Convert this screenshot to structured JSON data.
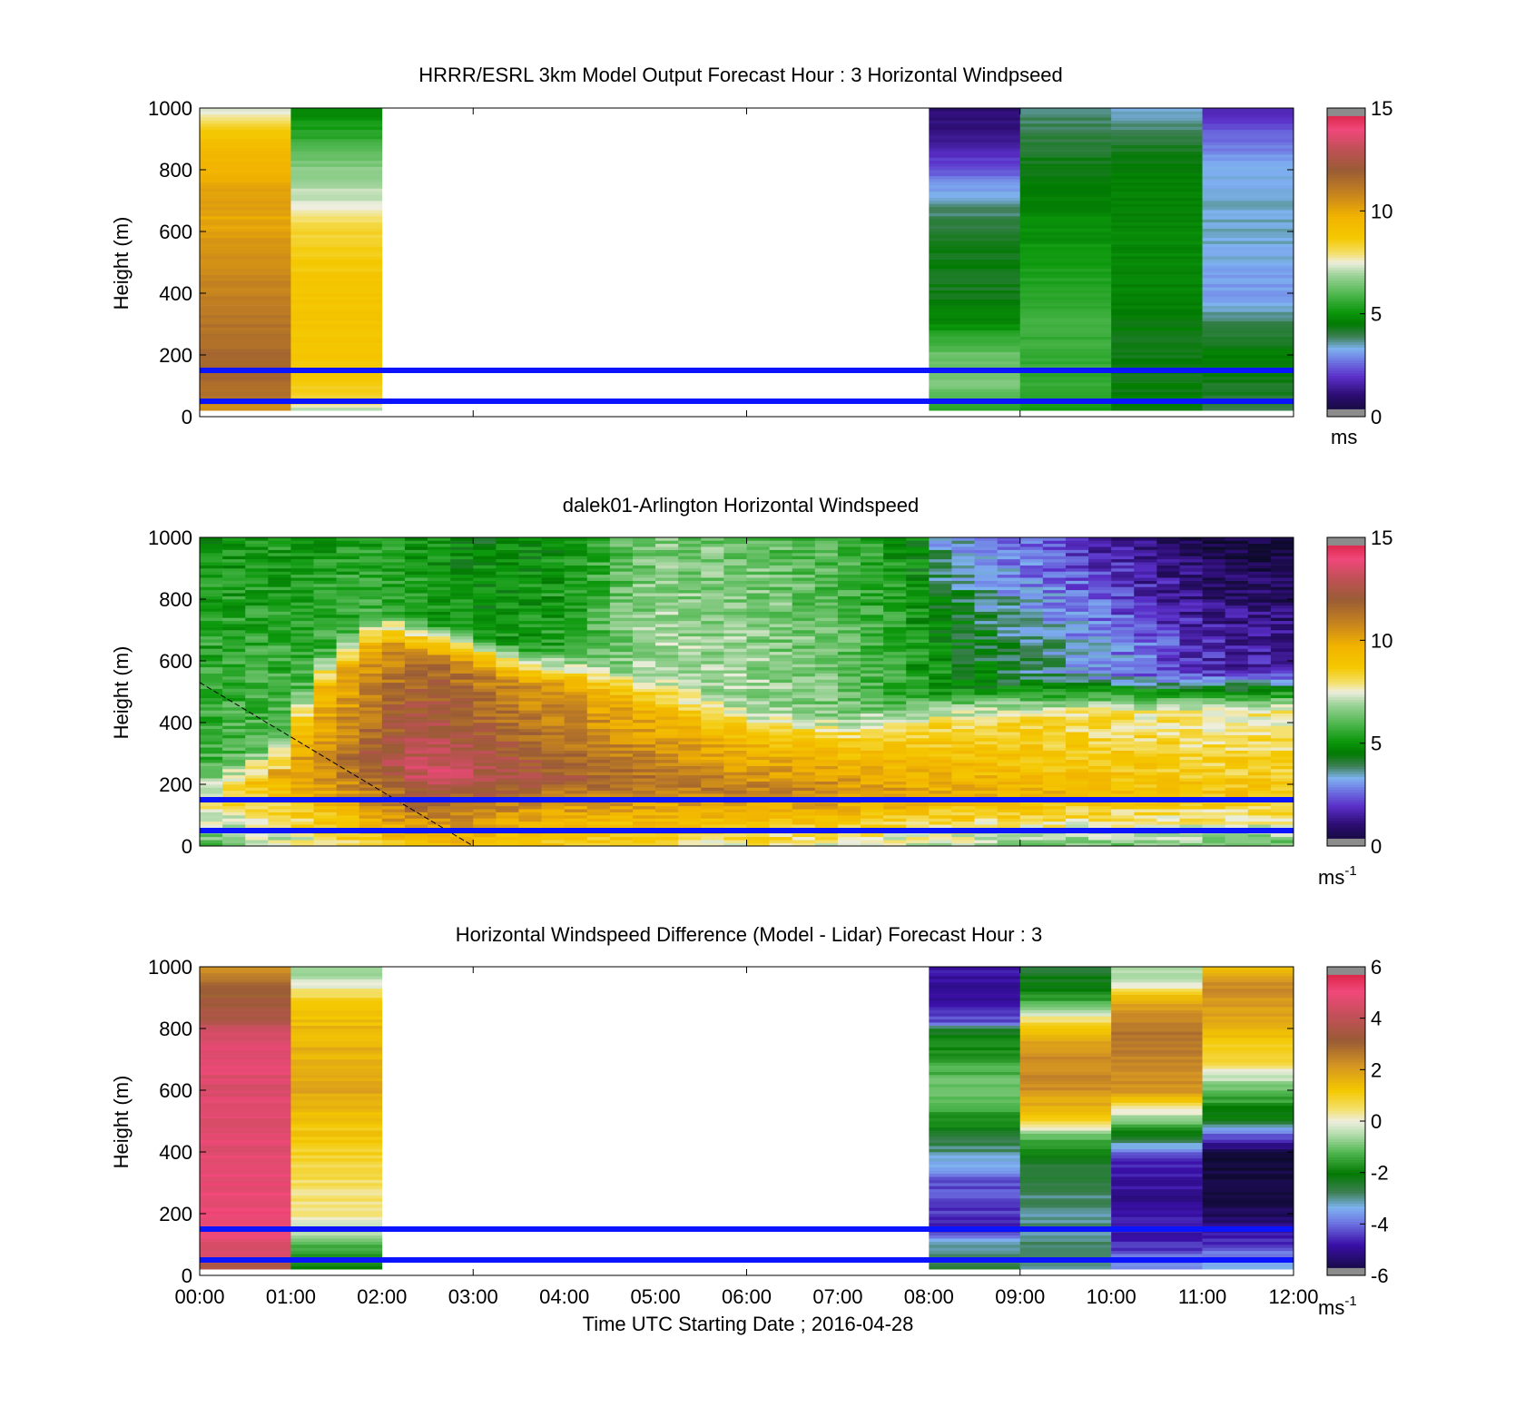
{
  "figure": {
    "xlabel": "Time UTC  Starting Date ; 2016-04-28",
    "x_ticks": [
      "00:00",
      "01:00",
      "02:00",
      "03:00",
      "04:00",
      "05:00",
      "06:00",
      "07:00",
      "08:00",
      "09:00",
      "10:00",
      "11:00",
      "12:00"
    ],
    "reference_lines_m": [
      50,
      150
    ],
    "reference_line_color": "#0a14ff"
  },
  "chart_data": [
    {
      "id": "model",
      "type": "heatmap",
      "title": "HRRR/ESRL 3km Model Output   Forecast Hour : 3 Horizontal Windpseed",
      "ylabel": "Height (m)",
      "y_ticks": [
        "0",
        "200",
        "400",
        "600",
        "800",
        "1000"
      ],
      "ylim": [
        0,
        1000
      ],
      "xlim_hours": [
        0,
        12
      ],
      "colorbar": {
        "ticks": [
          "0",
          "5",
          "10",
          "15"
        ],
        "range": [
          0,
          15
        ],
        "unit": "ms",
        "unit_superscript": "",
        "palette": "wind"
      },
      "grid": false,
      "columns": [
        {
          "start": 0,
          "end": 1,
          "profile": [
            [
              0,
              10
            ],
            [
              60,
              11.2
            ],
            [
              150,
              11.8
            ],
            [
              300,
              11.3
            ],
            [
              500,
              10.6
            ],
            [
              650,
              10.0
            ],
            [
              700,
              10.3
            ],
            [
              800,
              9.7
            ],
            [
              880,
              9.3
            ],
            [
              1000,
              7.4
            ]
          ]
        },
        {
          "start": 1,
          "end": 2,
          "profile": [
            [
              0,
              5.8
            ],
            [
              50,
              8.4
            ],
            [
              100,
              8.6
            ],
            [
              300,
              8.9
            ],
            [
              500,
              8.7
            ],
            [
              620,
              8.2
            ],
            [
              700,
              7.3
            ],
            [
              800,
              6.7
            ],
            [
              900,
              5.6
            ],
            [
              1000,
              4.7
            ]
          ]
        },
        {
          "start": 8,
          "end": 9,
          "profile": [
            [
              0,
              4.9
            ],
            [
              100,
              6.5
            ],
            [
              200,
              6.3
            ],
            [
              300,
              4.9
            ],
            [
              400,
              4.3
            ],
            [
              500,
              4.4
            ],
            [
              600,
              4.1
            ],
            [
              700,
              3.6
            ],
            [
              800,
              2.4
            ],
            [
              900,
              1.3
            ],
            [
              1000,
              1.0
            ]
          ]
        },
        {
          "start": 9,
          "end": 10,
          "profile": [
            [
              0,
              5.2
            ],
            [
              100,
              5.6
            ],
            [
              300,
              5.7
            ],
            [
              500,
              5.2
            ],
            [
              650,
              4.8
            ],
            [
              750,
              4.5
            ],
            [
              850,
              4.3
            ],
            [
              950,
              3.9
            ],
            [
              1000,
              3.6
            ]
          ]
        },
        {
          "start": 10,
          "end": 11,
          "profile": [
            [
              0,
              4.6
            ],
            [
              200,
              4.3
            ],
            [
              400,
              4.7
            ],
            [
              600,
              4.8
            ],
            [
              800,
              4.6
            ],
            [
              900,
              4.1
            ],
            [
              1000,
              3.4
            ]
          ]
        },
        {
          "start": 11,
          "end": 12,
          "profile": [
            [
              0,
              3.8
            ],
            [
              100,
              4.3
            ],
            [
              200,
              4.6
            ],
            [
              300,
              4.0
            ],
            [
              400,
              3.0
            ],
            [
              600,
              3.5
            ],
            [
              800,
              3.3
            ],
            [
              900,
              2.6
            ],
            [
              1000,
              1.8
            ]
          ]
        }
      ]
    },
    {
      "id": "lidar",
      "type": "heatmap",
      "title": "dalek01-Arlington  Horizontal Windspeed",
      "ylabel": "Height (m)",
      "y_ticks": [
        "0",
        "200",
        "400",
        "600",
        "800",
        "1000"
      ],
      "ylim": [
        0,
        1000
      ],
      "xlim_hours": [
        0,
        12
      ],
      "colorbar": {
        "ticks": [
          "0",
          "5",
          "10",
          "15"
        ],
        "range": [
          0,
          15
        ],
        "unit": "ms",
        "unit_superscript": "-1",
        "palette": "wind"
      },
      "grid": false,
      "time_step_hours": 0.25,
      "data_end_hour": 11.85,
      "low_level_jet": [
        [
          0,
          8.7
        ],
        [
          1,
          10.2
        ],
        [
          1.5,
          11.2
        ],
        [
          2.5,
          13.5
        ],
        [
          3.5,
          12.4
        ],
        [
          4.5,
          11.6
        ],
        [
          6,
          11.0
        ],
        [
          7,
          10.7
        ],
        [
          8,
          9.9
        ],
        [
          9,
          9.6
        ],
        [
          10,
          9.3
        ],
        [
          11,
          9.0
        ],
        [
          12,
          8.9
        ]
      ],
      "jet_peak_height_m": [
        [
          0,
          250
        ],
        [
          2,
          260
        ],
        [
          3,
          220
        ],
        [
          4,
          230
        ],
        [
          6,
          180
        ],
        [
          8,
          170
        ],
        [
          10,
          170
        ],
        [
          12,
          160
        ]
      ],
      "boundary_layer_top_m": [
        [
          0,
          150
        ],
        [
          0.9,
          250
        ],
        [
          1.3,
          500
        ],
        [
          2,
          650
        ],
        [
          2.5,
          610
        ],
        [
          3.5,
          530
        ],
        [
          4.2,
          500
        ],
        [
          5,
          430
        ],
        [
          6,
          330
        ],
        [
          7,
          310
        ],
        [
          8,
          380
        ],
        [
          9,
          420
        ],
        [
          10,
          430
        ],
        [
          11,
          440
        ],
        [
          12,
          450
        ]
      ],
      "upper_speed": [
        [
          0,
          5.0
        ],
        [
          2,
          5.4
        ],
        [
          3,
          4.6
        ],
        [
          4,
          5.0
        ],
        [
          5,
          6.5
        ],
        [
          6,
          6.3
        ],
        [
          7,
          5.8
        ],
        [
          8,
          4.6
        ],
        [
          9,
          3.4
        ],
        [
          10,
          2.5
        ],
        [
          11,
          1.4
        ],
        [
          12,
          0.9
        ]
      ],
      "dashed_line": {
        "from": [
          0,
          530
        ],
        "to": [
          3,
          0
        ]
      }
    },
    {
      "id": "difference",
      "type": "heatmap",
      "title": "Horizontal Windspeed Difference (Model - Lidar) Forecast Hour : 3",
      "ylabel": "Height (m)",
      "y_ticks": [
        "0",
        "200",
        "400",
        "600",
        "800",
        "1000"
      ],
      "ylim": [
        0,
        1000
      ],
      "xlim_hours": [
        0,
        12
      ],
      "colorbar": {
        "ticks": [
          "-6",
          "-4",
          "-2",
          "0",
          "2",
          "4",
          "6"
        ],
        "range": [
          -6,
          6
        ],
        "unit": "ms",
        "unit_superscript": "-1",
        "palette": "diff"
      },
      "grid": false,
      "columns": [
        {
          "start": 0,
          "end": 1,
          "profile": [
            [
              0,
              2.8
            ],
            [
              50,
              4.2
            ],
            [
              150,
              5.0
            ],
            [
              300,
              4.9
            ],
            [
              500,
              4.7
            ],
            [
              600,
              4.6
            ],
            [
              700,
              4.8
            ],
            [
              800,
              4.5
            ],
            [
              820,
              3.5
            ],
            [
              900,
              3.2
            ],
            [
              1000,
              2.4
            ]
          ]
        },
        {
          "start": 1,
          "end": 2,
          "profile": [
            [
              0,
              -2.2
            ],
            [
              100,
              -1.2
            ],
            [
              200,
              0.3
            ],
            [
              300,
              0.6
            ],
            [
              400,
              0.9
            ],
            [
              600,
              1.8
            ],
            [
              800,
              1.5
            ],
            [
              900,
              0.9
            ],
            [
              950,
              -0.3
            ],
            [
              1000,
              -0.8
            ]
          ]
        },
        {
          "start": 8,
          "end": 9,
          "profile": [
            [
              0,
              -2.6
            ],
            [
              100,
              -3.1
            ],
            [
              150,
              -4.6
            ],
            [
              300,
              -4.2
            ],
            [
              400,
              -3.0
            ],
            [
              500,
              -1.8
            ],
            [
              600,
              -1.0
            ],
            [
              700,
              -1.5
            ],
            [
              800,
              -2.3
            ],
            [
              820,
              -4.2
            ],
            [
              900,
              -5.0
            ],
            [
              1000,
              -4.8
            ]
          ]
        },
        {
          "start": 9,
          "end": 10,
          "profile": [
            [
              0,
              -2.8
            ],
            [
              200,
              -3.0
            ],
            [
              350,
              -2.6
            ],
            [
              450,
              -1.2
            ],
            [
              500,
              1.0
            ],
            [
              600,
              2.2
            ],
            [
              700,
              2.4
            ],
            [
              800,
              1.3
            ],
            [
              900,
              -1.6
            ],
            [
              1000,
              -2.7
            ]
          ]
        },
        {
          "start": 10,
          "end": 11,
          "profile": [
            [
              0,
              -3.2
            ],
            [
              100,
              -4.6
            ],
            [
              250,
              -5.0
            ],
            [
              380,
              -4.6
            ],
            [
              440,
              -2.7
            ],
            [
              500,
              -1.0
            ],
            [
              600,
              2.2
            ],
            [
              800,
              2.8
            ],
            [
              900,
              1.6
            ],
            [
              950,
              -0.3
            ],
            [
              1000,
              -0.5
            ]
          ]
        },
        {
          "start": 11,
          "end": 12,
          "profile": [
            [
              0,
              -3.0
            ],
            [
              100,
              -4.4
            ],
            [
              200,
              -5.6
            ],
            [
              300,
              -5.7
            ],
            [
              400,
              -5.8
            ],
            [
              450,
              -4.3
            ],
            [
              500,
              -2.4
            ],
            [
              600,
              -1.1
            ],
            [
              700,
              0.8
            ],
            [
              850,
              1.9
            ],
            [
              950,
              2.4
            ],
            [
              1000,
              1.4
            ]
          ]
        }
      ]
    }
  ]
}
